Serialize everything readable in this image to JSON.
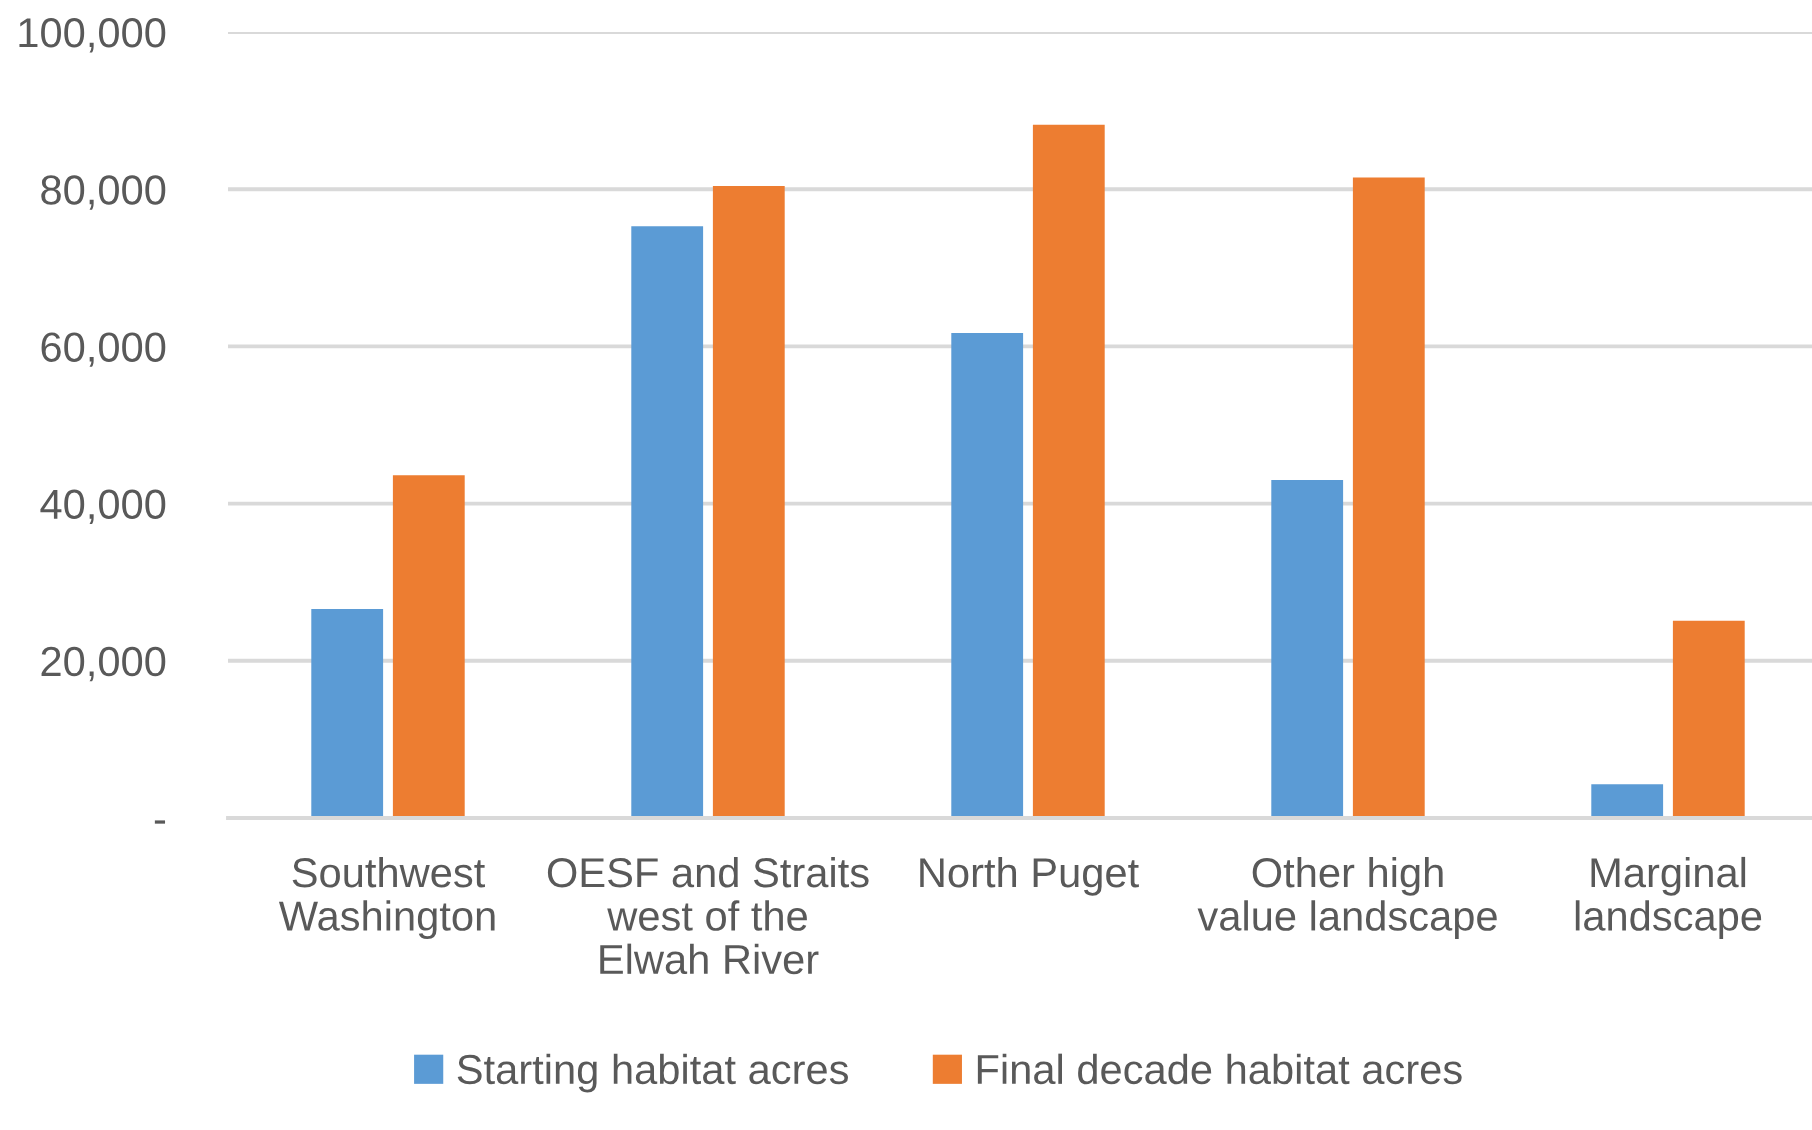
{
  "chart_data": {
    "type": "bar",
    "categories": [
      "Southwest\nWashington",
      "OESF and Straits\nwest of the\nElwah River",
      "North Puget",
      "Other high\nvalue landscape",
      "Marginal\nlandscape"
    ],
    "series": [
      {
        "name": "Starting habitat acres",
        "color": "#5b9bd5",
        "values": [
          26600,
          75300,
          61700,
          43000,
          4300
        ]
      },
      {
        "name": "Final decade habitat acres",
        "color": "#ed7d31",
        "values": [
          43600,
          80400,
          88200,
          81500,
          25100
        ]
      }
    ],
    "ylim": [
      0,
      100000
    ],
    "yticks": [
      {
        "value": 0,
        "label": "-"
      },
      {
        "value": 20000,
        "label": "20,000"
      },
      {
        "value": 40000,
        "label": "40,000"
      },
      {
        "value": 60000,
        "label": "60,000"
      },
      {
        "value": 80000,
        "label": "80,000"
      },
      {
        "value": 100000,
        "label": "100,000"
      }
    ],
    "grid": "y",
    "legend": "bottom"
  }
}
